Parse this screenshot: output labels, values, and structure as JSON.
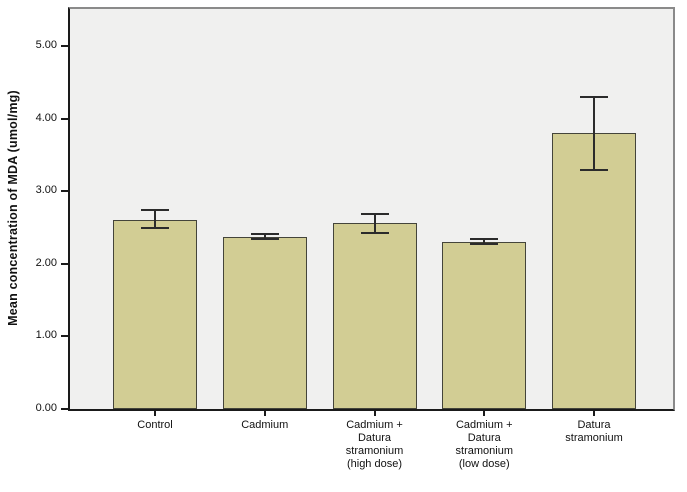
{
  "chart_data": {
    "type": "bar",
    "title": "",
    "xlabel": "",
    "ylabel": "Mean concentration of MDA (umol/mg)",
    "categories": [
      "Control",
      "Cadmium",
      "Cadmium + Datura stramonium (high dose)",
      "Cadmium + Datura stramonium (low dose)",
      "Datura stramonium"
    ],
    "values": [
      2.61,
      2.37,
      2.56,
      2.3,
      3.8
    ],
    "errors": [
      {
        "low": 2.49,
        "high": 2.74
      },
      {
        "low": 2.34,
        "high": 2.41
      },
      {
        "low": 2.43,
        "high": 2.69
      },
      {
        "low": 2.27,
        "high": 2.34
      },
      {
        "low": 3.29,
        "high": 4.3
      }
    ],
    "yticks": [
      {
        "value": 0,
        "label": "0.00"
      },
      {
        "value": 1,
        "label": "1.00"
      },
      {
        "value": 2,
        "label": "2.00"
      },
      {
        "value": 3,
        "label": "3.00"
      },
      {
        "value": 4,
        "label": "4.00"
      },
      {
        "value": 5,
        "label": "5.00"
      }
    ],
    "ylim": [
      0,
      5.5
    ],
    "grid": false,
    "legend": "none",
    "colors": {
      "bar_fill": "#d2cd94",
      "bar_border": "#44443a",
      "plot_bg": "#f0f0ef",
      "frame_gray": "#8a8a8a",
      "axis_black": "#1a1a1a",
      "error_bar": "#2b2b2b",
      "text": "#111111",
      "page_bg": "#ffffff"
    }
  }
}
